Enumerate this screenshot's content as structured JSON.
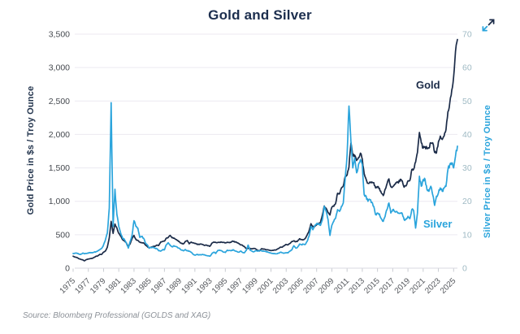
{
  "icons": {
    "expand": "expand-diagonal-arrows"
  },
  "colors": {
    "grid": "#ece9f1",
    "axis_line": "#d9d9e0",
    "left_ticks": "#45494f",
    "right_ticks": "#9fbac4",
    "x_ticks": "#55585d",
    "tick_mark": "#c9ccd2",
    "title": "#1c2e4e"
  },
  "chart_data": {
    "type": "line",
    "title": "Gold and Silver",
    "source": "Source: Bloomberg Professional (GOLDS and XAG)",
    "x_start_year": 1975,
    "x_step_years": 0.25,
    "x_tick_labels": [
      "1975",
      "1977",
      "1979",
      "1981",
      "1983",
      "1985",
      "1987",
      "1989",
      "1991",
      "1993",
      "1995",
      "1997",
      "1999",
      "2001",
      "2003",
      "2005",
      "2007",
      "2009",
      "2011",
      "2013",
      "2015",
      "2017",
      "2019",
      "2021",
      "2023",
      "2025"
    ],
    "left_axis": {
      "label": "Gold Price in $s / Troy Ounce",
      "range": [
        0,
        3500
      ],
      "tick_labels": [
        "0",
        "500",
        "1,000",
        "1,500",
        "2,000",
        "2,500",
        "3,000",
        "3,500"
      ],
      "tick_values": [
        0,
        500,
        1000,
        1500,
        2000,
        2500,
        3000,
        3500
      ],
      "color": "#22344d"
    },
    "right_axis": {
      "label": "Silver Price in $s / Troy Ounce",
      "range": [
        0,
        70
      ],
      "tick_labels": [
        "0",
        "10",
        "20",
        "30",
        "40",
        "50",
        "60",
        "70"
      ],
      "tick_values": [
        0,
        10,
        20,
        30,
        40,
        50,
        60,
        70
      ],
      "color": "#2aa4dc"
    },
    "legend_position": "inline-annotations",
    "grid": true,
    "series": [
      {
        "name": "Gold",
        "axis": "left",
        "color": "#1b2b48",
        "values": [
          180,
          167,
          160,
          142,
          132,
          126,
          109,
          130,
          136,
          143,
          147,
          160,
          178,
          184,
          206,
          207,
          240,
          258,
          315,
          455,
          700,
          520,
          660,
          600,
          520,
          480,
          425,
          410,
          375,
          320,
          365,
          445,
          490,
          430,
          415,
          390,
          380,
          380,
          345,
          325,
          300,
          315,
          325,
          325,
          345,
          340,
          390,
          400,
          405,
          450,
          460,
          490,
          455,
          450,
          430,
          415,
          390,
          370,
          365,
          400,
          415,
          365,
          390,
          380,
          370,
          360,
          355,
          360,
          355,
          340,
          345,
          335,
          330,
          375,
          390,
          385,
          385,
          385,
          390,
          385,
          378,
          388,
          385,
          387,
          405,
          390,
          385,
          370,
          350,
          343,
          325,
          295,
          295,
          295,
          290,
          295,
          287,
          265,
          258,
          290,
          285,
          280,
          275,
          270,
          263,
          267,
          272,
          278,
          295,
          315,
          315,
          335,
          355,
          350,
          370,
          400,
          410,
          395,
          405,
          440,
          428,
          425,
          445,
          495,
          555,
          665,
          620,
          625,
          650,
          665,
          680,
          790,
          930,
          895,
          830,
          795,
          910,
          925,
          970,
          1120,
          1110,
          1200,
          1230,
          1370,
          1390,
          1510,
          1870,
          1680,
          1690,
          1610,
          1655,
          1720,
          1630,
          1415,
          1330,
          1270,
          1290,
          1290,
          1280,
          1200,
          1220,
          1195,
          1125,
          1085,
          1180,
          1260,
          1335,
          1220,
          1220,
          1255,
          1280,
          1275,
          1330,
          1305,
          1210,
          1230,
          1305,
          1310,
          1475,
          1480,
          1585,
          1730,
          2030,
          1875,
          1795,
          1815,
          1790,
          1795,
          1875,
          1875,
          1730,
          1725,
          1890,
          1975,
          1925,
          1975,
          2070,
          2340,
          2475,
          2660,
          2860,
          3240,
          3420
        ]
      },
      {
        "name": "Silver",
        "axis": "right",
        "color": "#2aa4dc",
        "values": [
          4.4,
          4.5,
          4.5,
          4.2,
          4.1,
          4.5,
          4.3,
          4.4,
          4.5,
          4.7,
          4.6,
          4.8,
          4.9,
          5.2,
          5.5,
          5.9,
          7.0,
          8.5,
          10.5,
          18.0,
          49.5,
          12.5,
          23.6,
          16.0,
          12.5,
          10.5,
          9.0,
          8.5,
          7.5,
          6.0,
          8.0,
          10.0,
          14.2,
          12.5,
          12.0,
          9.2,
          9.5,
          9.0,
          7.5,
          7.0,
          6.0,
          6.2,
          6.2,
          6.0,
          5.8,
          5.2,
          5.1,
          5.5,
          5.5,
          7.0,
          7.6,
          6.8,
          6.4,
          6.7,
          6.5,
          6.1,
          5.9,
          5.4,
          5.2,
          5.6,
          5.2,
          5.1,
          4.8,
          4.2,
          3.9,
          4.1,
          4.0,
          4.0,
          4.1,
          4.0,
          3.8,
          3.7,
          3.6,
          4.4,
          4.8,
          4.4,
          5.3,
          5.4,
          5.2,
          4.8,
          4.7,
          5.4,
          5.3,
          5.2,
          5.5,
          5.2,
          5.0,
          4.8,
          5.1,
          4.7,
          4.6,
          5.3,
          6.9,
          5.4,
          5.1,
          4.9,
          5.2,
          5.1,
          5.3,
          5.2,
          5.1,
          5.0,
          4.9,
          4.7,
          4.5,
          4.4,
          4.3,
          4.3,
          4.5,
          4.8,
          4.6,
          4.5,
          4.6,
          4.6,
          5.1,
          5.5,
          6.7,
          6.0,
          6.3,
          7.2,
          7.0,
          7.2,
          7.1,
          8.0,
          9.5,
          12.5,
          11.5,
          12.6,
          13.3,
          13.2,
          12.8,
          14.4,
          18.5,
          17.0,
          14.5,
          9.8,
          12.8,
          14.0,
          15.0,
          17.5,
          17.0,
          18.5,
          19.5,
          26.5,
          34.0,
          48.5,
          38.0,
          30.0,
          33.0,
          28.5,
          31.0,
          32.5,
          31.0,
          22.0,
          21.5,
          20.0,
          20.5,
          19.7,
          18.5,
          16.0,
          16.5,
          16.2,
          14.8,
          14.0,
          15.5,
          17.5,
          19.5,
          16.5,
          17.5,
          17.0,
          17.0,
          16.5,
          16.5,
          16.3,
          14.5,
          14.6,
          15.5,
          14.8,
          17.5,
          17.2,
          12.0,
          16.5,
          27.5,
          24.5,
          26.5,
          26.5,
          23.5,
          23.0,
          24.5,
          22.0,
          18.8,
          21.5,
          22.5,
          24.0,
          23.0,
          24.0,
          24.5,
          29.5,
          31.0,
          31.5,
          30.0,
          33.5,
          36.5
        ]
      }
    ]
  }
}
